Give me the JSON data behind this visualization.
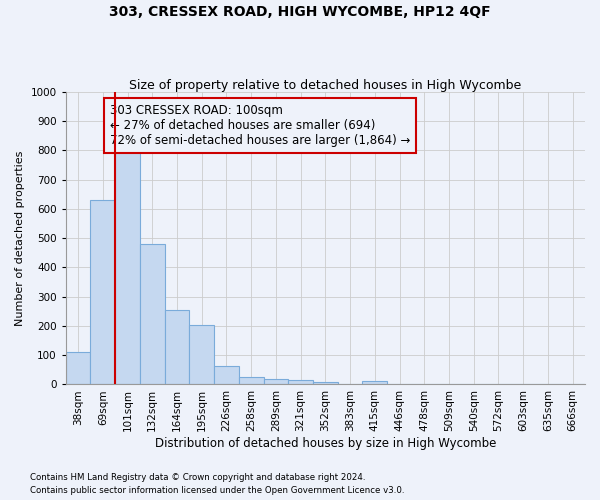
{
  "title": "303, CRESSEX ROAD, HIGH WYCOMBE, HP12 4QF",
  "subtitle": "Size of property relative to detached houses in High Wycombe",
  "xlabel": "Distribution of detached houses by size in High Wycombe",
  "ylabel": "Number of detached properties",
  "footnote1": "Contains HM Land Registry data © Crown copyright and database right 2024.",
  "footnote2": "Contains public sector information licensed under the Open Government Licence v3.0.",
  "bar_labels": [
    "38sqm",
    "69sqm",
    "101sqm",
    "132sqm",
    "164sqm",
    "195sqm",
    "226sqm",
    "258sqm",
    "289sqm",
    "321sqm",
    "352sqm",
    "383sqm",
    "415sqm",
    "446sqm",
    "478sqm",
    "509sqm",
    "540sqm",
    "572sqm",
    "603sqm",
    "635sqm",
    "666sqm"
  ],
  "bar_values": [
    110,
    630,
    805,
    480,
    253,
    202,
    63,
    27,
    20,
    14,
    9,
    0,
    11,
    0,
    0,
    0,
    0,
    0,
    0,
    0,
    0
  ],
  "highlight_bar_index": 2,
  "bar_color": "#c5d8f0",
  "bar_edge_color": "#7aabda",
  "highlight_line_color": "#cc0000",
  "annotation_text": "303 CRESSEX ROAD: 100sqm\n← 27% of detached houses are smaller (694)\n72% of semi-detached houses are larger (1,864) →",
  "annotation_box_edge_color": "#cc0000",
  "ylim": [
    0,
    1000
  ],
  "yticks": [
    0,
    100,
    200,
    300,
    400,
    500,
    600,
    700,
    800,
    900,
    1000
  ],
  "grid_color": "#cccccc",
  "background_color": "#eef2fa",
  "title_fontsize": 10,
  "subtitle_fontsize": 9,
  "axis_label_fontsize": 8.5,
  "tick_fontsize": 7.5,
  "annotation_fontsize": 8.5,
  "ylabel_fontsize": 8
}
